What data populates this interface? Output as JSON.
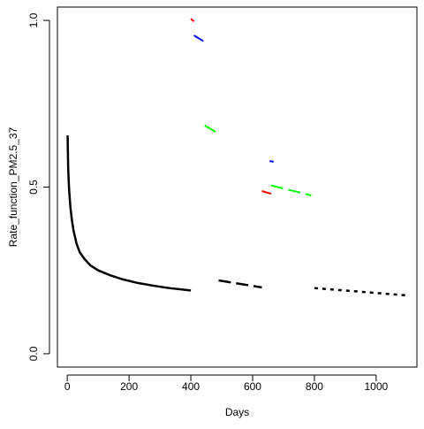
{
  "chart_data": {
    "type": "line",
    "title": "",
    "xlabel": "Days",
    "ylabel": "Rate_function_PM2.5_37",
    "xlim": [
      -32,
      1132
    ],
    "ylim": [
      -0.04,
      1.04
    ],
    "x_ticks": [
      0,
      200,
      400,
      600,
      800,
      1000
    ],
    "x_tick_labels": [
      "0",
      "200",
      "400",
      "600",
      "800",
      "1000"
    ],
    "y_ticks": [
      0.0,
      0.5,
      1.0
    ],
    "y_tick_labels": [
      "0.0",
      "0.5",
      "1.0"
    ],
    "grid": false,
    "legend": "none",
    "colors": {
      "black": "#000000",
      "red": "#ff0000",
      "blue": "#0000ff",
      "green": "#00ff00"
    },
    "series": [
      {
        "color": "#000000",
        "style": "solid",
        "width": 2.5,
        "points": [
          [
            1,
            0.655
          ],
          [
            3,
            0.55
          ],
          [
            6,
            0.49
          ],
          [
            10,
            0.44
          ],
          [
            15,
            0.4
          ],
          [
            20,
            0.37
          ],
          [
            30,
            0.33
          ],
          [
            40,
            0.305
          ],
          [
            55,
            0.285
          ],
          [
            75,
            0.265
          ],
          [
            100,
            0.25
          ],
          [
            140,
            0.235
          ],
          [
            180,
            0.223
          ],
          [
            230,
            0.212
          ],
          [
            280,
            0.204
          ],
          [
            330,
            0.197
          ],
          [
            400,
            0.19
          ]
        ]
      },
      {
        "color": "#000000",
        "style": "dashed",
        "width": 2.5,
        "points": [
          [
            490,
            0.22
          ],
          [
            630,
            0.199
          ]
        ]
      },
      {
        "color": "#000000",
        "style": "dotted",
        "width": 2.5,
        "points": [
          [
            800,
            0.197
          ],
          [
            1100,
            0.175
          ]
        ]
      },
      {
        "color": "#ff0000",
        "style": "solid",
        "width": 2,
        "points": [
          [
            400,
            1.005
          ],
          [
            410,
            0.997
          ]
        ]
      },
      {
        "color": "#0000ff",
        "style": "dashed",
        "width": 2,
        "points": [
          [
            410,
            0.955
          ],
          [
            440,
            0.938
          ]
        ]
      },
      {
        "color": "#00ff00",
        "style": "dashed",
        "width": 2,
        "points": [
          [
            445,
            0.685
          ],
          [
            490,
            0.66
          ]
        ]
      },
      {
        "color": "#0000ff",
        "style": "dashed",
        "width": 2,
        "points": [
          [
            655,
            0.578
          ],
          [
            668,
            0.576
          ]
        ]
      },
      {
        "color": "#ff0000",
        "style": "dashed",
        "width": 2,
        "points": [
          [
            630,
            0.488
          ],
          [
            660,
            0.48
          ]
        ]
      },
      {
        "color": "#00ff00",
        "style": "dashed",
        "width": 2,
        "points": [
          [
            660,
            0.505
          ],
          [
            790,
            0.475
          ]
        ]
      }
    ]
  }
}
